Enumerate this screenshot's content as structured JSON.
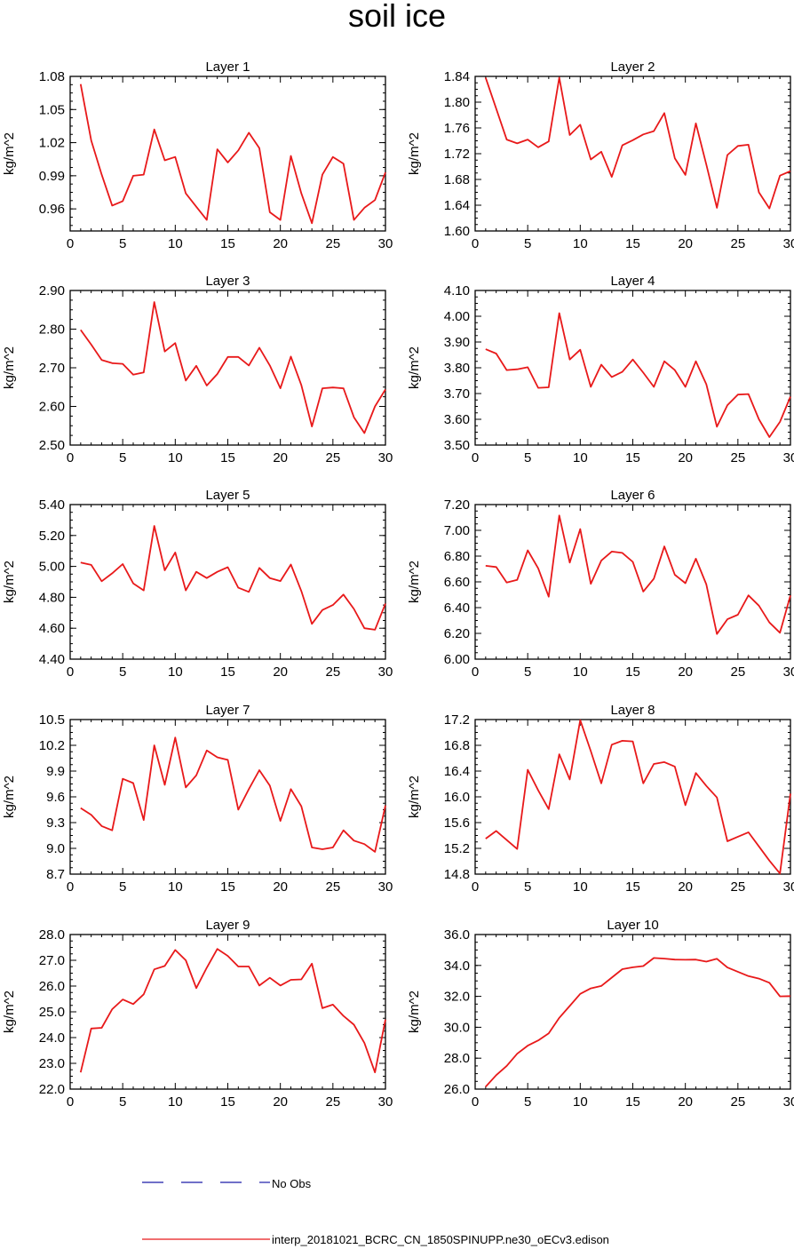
{
  "title": "soil ice",
  "colors": {
    "model_line": "#e8191a",
    "obs_line": "#1a1aa8",
    "axis": "#000000"
  },
  "legend": {
    "obs_label": "No Obs",
    "model_label": "interp_20181021_BCRC_CN_1850SPINUPP.ne30_oECv3.edison"
  },
  "chart_data": [
    {
      "type": "line",
      "title": "Layer 1",
      "ylabel": "kg/m^2",
      "xlabel": "",
      "xlim": [
        0,
        30
      ],
      "ylim": [
        0.94,
        1.08
      ],
      "xticks": [
        0,
        5,
        10,
        15,
        20,
        25,
        30
      ],
      "yticks": [
        0.96,
        0.99,
        1.02,
        1.05,
        1.08
      ],
      "ytick_labels": [
        "0.96",
        "0.99",
        "1.02",
        "1.05",
        "1.08"
      ],
      "series": [
        {
          "x": [
            1,
            2,
            3,
            4,
            5,
            6,
            7,
            8,
            9,
            10,
            11,
            12,
            13,
            14,
            15,
            16,
            17,
            18,
            19,
            20,
            21,
            22,
            23,
            24,
            25,
            26,
            27,
            28,
            29,
            30
          ],
          "values": [
            1.073,
            1.022,
            0.991,
            0.963,
            0.967,
            0.99,
            0.991,
            1.032,
            1.004,
            1.007,
            0.974,
            0.962,
            0.95,
            1.014,
            1.002,
            1.013,
            1.029,
            1.015,
            0.957,
            0.95,
            1.008,
            0.974,
            0.947,
            0.991,
            1.007,
            1.001,
            0.95,
            0.961,
            0.968,
            0.993
          ]
        }
      ]
    },
    {
      "type": "line",
      "title": "Layer 2",
      "ylabel": "kg/m^2",
      "xlabel": "",
      "xlim": [
        0,
        30
      ],
      "ylim": [
        1.6,
        1.84
      ],
      "xticks": [
        0,
        5,
        10,
        15,
        20,
        25,
        30
      ],
      "yticks": [
        1.6,
        1.64,
        1.68,
        1.72,
        1.76,
        1.8,
        1.84
      ],
      "ytick_labels": [
        "1.60",
        "1.64",
        "1.68",
        "1.72",
        "1.76",
        "1.80",
        "1.84"
      ],
      "series": [
        {
          "x": [
            1,
            2,
            3,
            4,
            5,
            6,
            7,
            8,
            9,
            10,
            11,
            12,
            13,
            14,
            15,
            16,
            17,
            18,
            19,
            20,
            21,
            22,
            23,
            24,
            25,
            26,
            27,
            28,
            29,
            30
          ],
          "values": [
            1.838,
            1.79,
            1.742,
            1.736,
            1.742,
            1.73,
            1.739,
            1.838,
            1.749,
            1.765,
            1.711,
            1.723,
            1.684,
            1.733,
            1.741,
            1.75,
            1.755,
            1.783,
            1.713,
            1.687,
            1.767,
            1.703,
            1.636,
            1.718,
            1.732,
            1.734,
            1.66,
            1.635,
            1.686,
            1.693
          ]
        }
      ]
    },
    {
      "type": "line",
      "title": "Layer 3",
      "ylabel": "kg/m^2",
      "xlabel": "",
      "xlim": [
        0,
        30
      ],
      "ylim": [
        2.5,
        2.9
      ],
      "xticks": [
        0,
        5,
        10,
        15,
        20,
        25,
        30
      ],
      "yticks": [
        2.5,
        2.6,
        2.7,
        2.8,
        2.9
      ],
      "ytick_labels": [
        "2.50",
        "2.60",
        "2.70",
        "2.80",
        "2.90"
      ],
      "series": [
        {
          "x": [
            1,
            2,
            3,
            4,
            5,
            6,
            7,
            8,
            9,
            10,
            11,
            12,
            13,
            14,
            15,
            16,
            17,
            18,
            19,
            20,
            21,
            22,
            23,
            24,
            25,
            26,
            27,
            28,
            29,
            30
          ],
          "values": [
            2.798,
            2.76,
            2.72,
            2.712,
            2.71,
            2.682,
            2.688,
            2.87,
            2.742,
            2.764,
            2.667,
            2.705,
            2.654,
            2.684,
            2.728,
            2.728,
            2.706,
            2.752,
            2.706,
            2.647,
            2.729,
            2.655,
            2.548,
            2.647,
            2.649,
            2.647,
            2.572,
            2.531,
            2.6,
            2.644
          ]
        }
      ]
    },
    {
      "type": "line",
      "title": "Layer 4",
      "ylabel": "kg/m^2",
      "xlabel": "",
      "xlim": [
        0,
        30
      ],
      "ylim": [
        3.5,
        4.1
      ],
      "xticks": [
        0,
        5,
        10,
        15,
        20,
        25,
        30
      ],
      "yticks": [
        3.5,
        3.6,
        3.7,
        3.8,
        3.9,
        4.0,
        4.1
      ],
      "ytick_labels": [
        "3.50",
        "3.60",
        "3.70",
        "3.80",
        "3.90",
        "4.00",
        "4.10"
      ],
      "series": [
        {
          "x": [
            1,
            2,
            3,
            4,
            5,
            6,
            7,
            8,
            9,
            10,
            11,
            12,
            13,
            14,
            15,
            16,
            17,
            18,
            19,
            20,
            21,
            22,
            23,
            24,
            25,
            26,
            27,
            28,
            29,
            30
          ],
          "values": [
            3.872,
            3.855,
            3.791,
            3.794,
            3.802,
            3.722,
            3.724,
            4.012,
            3.832,
            3.87,
            3.726,
            3.812,
            3.764,
            3.784,
            3.832,
            3.781,
            3.726,
            3.825,
            3.791,
            3.726,
            3.825,
            3.736,
            3.571,
            3.655,
            3.696,
            3.698,
            3.6,
            3.531,
            3.59,
            3.688
          ]
        }
      ]
    },
    {
      "type": "line",
      "title": "Layer 5",
      "ylabel": "kg/m^2",
      "xlabel": "",
      "xlim": [
        0,
        30
      ],
      "ylim": [
        4.4,
        5.4
      ],
      "xticks": [
        0,
        5,
        10,
        15,
        20,
        25,
        30
      ],
      "yticks": [
        4.4,
        4.6,
        4.8,
        5.0,
        5.2,
        5.4
      ],
      "ytick_labels": [
        "4.40",
        "4.60",
        "4.80",
        "5.00",
        "5.20",
        "5.40"
      ],
      "series": [
        {
          "x": [
            1,
            2,
            3,
            4,
            5,
            6,
            7,
            8,
            9,
            10,
            11,
            12,
            13,
            14,
            15,
            16,
            17,
            18,
            19,
            20,
            21,
            22,
            23,
            24,
            25,
            26,
            27,
            28,
            29,
            30
          ],
          "values": [
            5.025,
            5.01,
            4.904,
            4.955,
            5.015,
            4.89,
            4.845,
            5.262,
            4.975,
            5.09,
            4.845,
            4.965,
            4.925,
            4.965,
            4.995,
            4.862,
            4.835,
            4.99,
            4.925,
            4.905,
            5.012,
            4.84,
            4.628,
            4.718,
            4.75,
            4.818,
            4.725,
            4.6,
            4.59,
            4.76
          ]
        }
      ]
    },
    {
      "type": "line",
      "title": "Layer 6",
      "ylabel": "kg/m^2",
      "xlabel": "",
      "xlim": [
        0,
        30
      ],
      "ylim": [
        6.0,
        7.2
      ],
      "xticks": [
        0,
        5,
        10,
        15,
        20,
        25,
        30
      ],
      "yticks": [
        6.0,
        6.2,
        6.4,
        6.6,
        6.8,
        7.0,
        7.2
      ],
      "ytick_labels": [
        "6.00",
        "6.20",
        "6.40",
        "6.60",
        "6.80",
        "7.00",
        "7.20"
      ],
      "series": [
        {
          "x": [
            1,
            2,
            3,
            4,
            5,
            6,
            7,
            8,
            9,
            10,
            11,
            12,
            13,
            14,
            15,
            16,
            17,
            18,
            19,
            20,
            21,
            22,
            23,
            24,
            25,
            26,
            27,
            28,
            29,
            30
          ],
          "values": [
            6.725,
            6.715,
            6.595,
            6.615,
            6.845,
            6.705,
            6.485,
            7.115,
            6.75,
            7.01,
            6.585,
            6.765,
            6.835,
            6.825,
            6.755,
            6.525,
            6.625,
            6.875,
            6.655,
            6.59,
            6.78,
            6.58,
            6.195,
            6.31,
            6.345,
            6.495,
            6.415,
            6.285,
            6.205,
            6.495
          ]
        }
      ]
    },
    {
      "type": "line",
      "title": "Layer 7",
      "ylabel": "kg/m^2",
      "xlabel": "",
      "xlim": [
        0,
        30
      ],
      "ylim": [
        8.7,
        10.5
      ],
      "xticks": [
        0,
        5,
        10,
        15,
        20,
        25,
        30
      ],
      "yticks": [
        8.7,
        9.0,
        9.3,
        9.6,
        9.9,
        10.2,
        10.5
      ],
      "ytick_labels": [
        "8.7",
        "9.0",
        "9.3",
        "9.6",
        "9.9",
        "10.2",
        "10.5"
      ],
      "series": [
        {
          "x": [
            1,
            2,
            3,
            4,
            5,
            6,
            7,
            8,
            9,
            10,
            11,
            12,
            13,
            14,
            15,
            16,
            17,
            18,
            19,
            20,
            21,
            22,
            23,
            24,
            25,
            26,
            27,
            28,
            29,
            30
          ],
          "values": [
            9.47,
            9.39,
            9.26,
            9.21,
            9.81,
            9.76,
            9.33,
            10.2,
            9.74,
            10.29,
            9.71,
            9.85,
            10.14,
            10.06,
            10.03,
            9.45,
            9.69,
            9.91,
            9.73,
            9.32,
            9.69,
            9.49,
            9.01,
            8.99,
            9.01,
            9.21,
            9.09,
            9.05,
            8.96,
            9.5
          ]
        }
      ]
    },
    {
      "type": "line",
      "title": "Layer 8",
      "ylabel": "kg/m^2",
      "xlabel": "",
      "xlim": [
        0,
        30
      ],
      "ylim": [
        14.8,
        17.2
      ],
      "xticks": [
        0,
        5,
        10,
        15,
        20,
        25,
        30
      ],
      "yticks": [
        14.8,
        15.2,
        15.6,
        16.0,
        16.4,
        16.8,
        17.2
      ],
      "ytick_labels": [
        "14.8",
        "15.2",
        "15.6",
        "16.0",
        "16.4",
        "16.8",
        "17.2"
      ],
      "series": [
        {
          "x": [
            1,
            2,
            3,
            4,
            5,
            6,
            7,
            8,
            9,
            10,
            11,
            12,
            13,
            14,
            15,
            16,
            17,
            18,
            19,
            20,
            21,
            22,
            23,
            24,
            25,
            26,
            27,
            28,
            29,
            30
          ],
          "values": [
            15.35,
            15.47,
            15.33,
            15.19,
            16.42,
            16.1,
            15.81,
            16.66,
            16.27,
            17.19,
            16.71,
            16.21,
            16.81,
            16.87,
            16.86,
            16.21,
            16.51,
            16.54,
            16.47,
            15.87,
            16.37,
            16.17,
            15.99,
            15.31,
            15.38,
            15.45,
            15.23,
            15.01,
            14.81,
            16.05
          ]
        }
      ]
    },
    {
      "type": "line",
      "title": "Layer 9",
      "ylabel": "kg/m^2",
      "xlabel": "",
      "xlim": [
        0,
        30
      ],
      "ylim": [
        22.0,
        28.0
      ],
      "xticks": [
        0,
        5,
        10,
        15,
        20,
        25,
        30
      ],
      "yticks": [
        22.0,
        23.0,
        24.0,
        25.0,
        26.0,
        27.0,
        28.0
      ],
      "ytick_labels": [
        "22.0",
        "23.0",
        "24.0",
        "25.0",
        "26.0",
        "27.0",
        "28.0"
      ],
      "series": [
        {
          "x": [
            1,
            2,
            3,
            4,
            5,
            6,
            7,
            8,
            9,
            10,
            11,
            12,
            13,
            14,
            15,
            16,
            17,
            18,
            19,
            20,
            21,
            22,
            23,
            24,
            25,
            26,
            27,
            28,
            29,
            30
          ],
          "values": [
            22.65,
            24.35,
            24.38,
            25.1,
            25.48,
            25.3,
            25.68,
            26.65,
            26.78,
            27.4,
            27.0,
            25.92,
            26.71,
            27.44,
            27.17,
            26.76,
            26.76,
            26.02,
            26.32,
            26.02,
            26.24,
            26.26,
            26.87,
            25.14,
            25.28,
            24.84,
            24.5,
            23.79,
            22.65,
            24.7
          ]
        }
      ]
    },
    {
      "type": "line",
      "title": "Layer 10",
      "ylabel": "kg/m^2",
      "xlabel": "",
      "xlim": [
        0,
        30
      ],
      "ylim": [
        26.0,
        36.0
      ],
      "xticks": [
        0,
        5,
        10,
        15,
        20,
        25,
        30
      ],
      "yticks": [
        26.0,
        28.0,
        30.0,
        32.0,
        34.0,
        36.0
      ],
      "ytick_labels": [
        "26.0",
        "28.0",
        "30.0",
        "32.0",
        "34.0",
        "36.0"
      ],
      "series": [
        {
          "x": [
            1,
            2,
            3,
            4,
            5,
            6,
            7,
            8,
            9,
            10,
            11,
            12,
            13,
            14,
            15,
            16,
            17,
            18,
            19,
            20,
            21,
            22,
            23,
            24,
            25,
            26,
            27,
            28,
            29,
            30
          ],
          "values": [
            26.15,
            26.9,
            27.5,
            28.29,
            28.81,
            29.15,
            29.61,
            30.61,
            31.38,
            32.16,
            32.52,
            32.67,
            33.21,
            33.76,
            33.88,
            33.96,
            34.48,
            34.44,
            34.38,
            34.37,
            34.38,
            34.25,
            34.43,
            33.87,
            33.59,
            33.31,
            33.15,
            32.88,
            32.0,
            32.02
          ]
        }
      ]
    }
  ]
}
